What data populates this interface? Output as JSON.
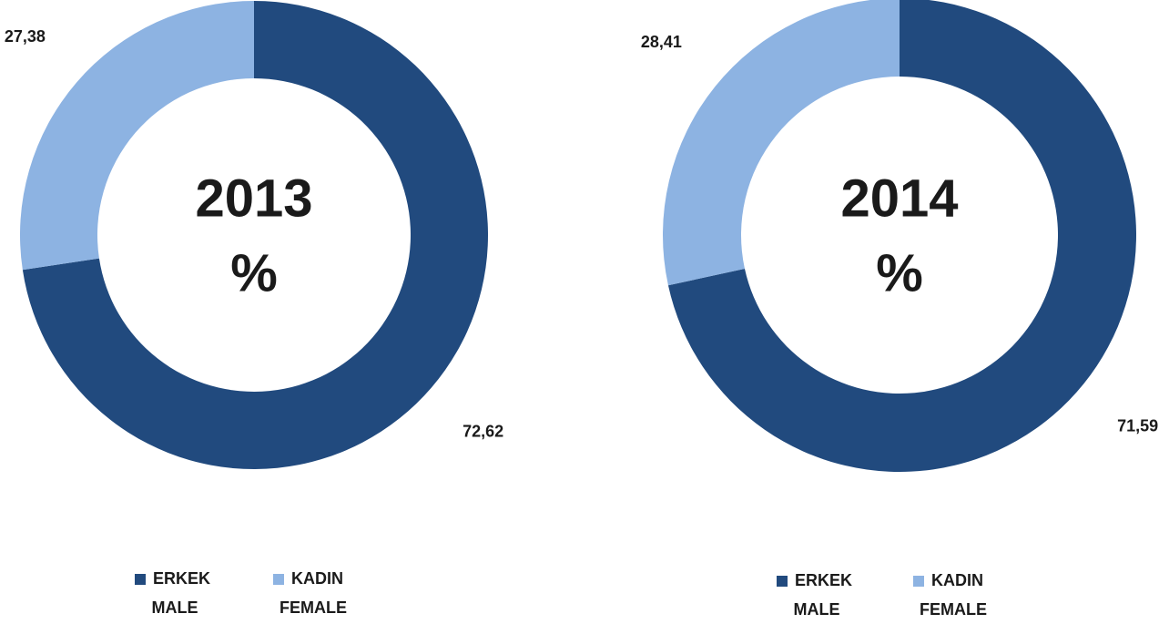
{
  "chart_data": [
    {
      "type": "donut",
      "title": "2013",
      "subtitle": "%",
      "categories": [
        [
          "ERKEK",
          "MALE"
        ],
        [
          "KADIN",
          "FEMALE"
        ]
      ],
      "values": [
        72.62,
        27.38
      ],
      "value_labels": [
        "72,62",
        "27,38"
      ],
      "colors": [
        "#214a7e",
        "#8db3e2"
      ]
    },
    {
      "type": "donut",
      "title": "2014",
      "subtitle": "%",
      "categories": [
        [
          "ERKEK",
          "MALE"
        ],
        [
          "KADIN",
          "FEMALE"
        ]
      ],
      "values": [
        71.59,
        28.41
      ],
      "value_labels": [
        "71,59",
        "28,41"
      ],
      "colors": [
        "#214a7e",
        "#8db3e2"
      ]
    }
  ]
}
